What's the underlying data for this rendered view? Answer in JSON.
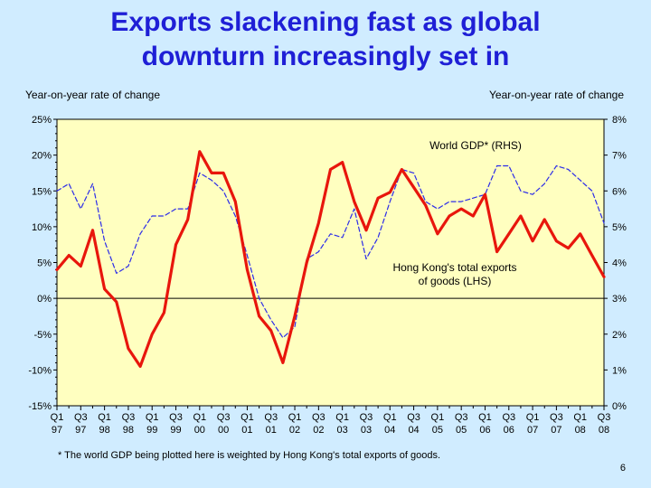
{
  "title_line1": "Exports slackening fast as global",
  "title_line2": "downturn increasingly set in",
  "footnote": "*  The world GDP being plotted here is weighted by Hong Kong's total exports of goods.",
  "page_number": "6",
  "chart_data": {
    "type": "line",
    "y_left_label": "Year-on-year rate of change",
    "y_right_label": "Year-on-year rate of change",
    "ylim_left": [
      -15,
      25
    ],
    "ylim_right": [
      0,
      8
    ],
    "y_left_ticks": [
      "25%",
      "20%",
      "15%",
      "10%",
      "5%",
      "0%",
      "-5%",
      "-10%",
      "-15%"
    ],
    "y_right_ticks": [
      "8%",
      "7%",
      "6%",
      "5%",
      "4%",
      "3%",
      "2%",
      "1%",
      "0%"
    ],
    "x_ticks": [
      {
        "q": "Q1",
        "y": "97"
      },
      {
        "q": "Q3",
        "y": "97"
      },
      {
        "q": "Q1",
        "y": "98"
      },
      {
        "q": "Q3",
        "y": "98"
      },
      {
        "q": "Q1",
        "y": "99"
      },
      {
        "q": "Q3",
        "y": "99"
      },
      {
        "q": "Q1",
        "y": "00"
      },
      {
        "q": "Q3",
        "y": "00"
      },
      {
        "q": "Q1",
        "y": "01"
      },
      {
        "q": "Q3",
        "y": "01"
      },
      {
        "q": "Q1",
        "y": "02"
      },
      {
        "q": "Q3",
        "y": "02"
      },
      {
        "q": "Q1",
        "y": "03"
      },
      {
        "q": "Q3",
        "y": "03"
      },
      {
        "q": "Q1",
        "y": "04"
      },
      {
        "q": "Q3",
        "y": "04"
      },
      {
        "q": "Q1",
        "y": "05"
      },
      {
        "q": "Q3",
        "y": "05"
      },
      {
        "q": "Q1",
        "y": "06"
      },
      {
        "q": "Q3",
        "y": "06"
      },
      {
        "q": "Q1",
        "y": "07"
      },
      {
        "q": "Q3",
        "y": "07"
      },
      {
        "q": "Q1",
        "y": "08"
      },
      {
        "q": "Q3",
        "y": "08"
      }
    ],
    "x": [
      "Q1 97",
      "Q2 97",
      "Q3 97",
      "Q4 97",
      "Q1 98",
      "Q2 98",
      "Q3 98",
      "Q4 98",
      "Q1 99",
      "Q2 99",
      "Q3 99",
      "Q4 99",
      "Q1 00",
      "Q2 00",
      "Q3 00",
      "Q4 00",
      "Q1 01",
      "Q2 01",
      "Q3 01",
      "Q4 01",
      "Q1 02",
      "Q2 02",
      "Q3 02",
      "Q4 02",
      "Q1 03",
      "Q2 03",
      "Q3 03",
      "Q4 03",
      "Q1 04",
      "Q2 04",
      "Q3 04",
      "Q4 04",
      "Q1 05",
      "Q2 05",
      "Q3 05",
      "Q4 05",
      "Q1 06",
      "Q2 06",
      "Q3 06",
      "Q4 06",
      "Q1 07",
      "Q2 07",
      "Q3 07",
      "Q4 07",
      "Q1 08",
      "Q2 08",
      "Q3 08"
    ],
    "series": [
      {
        "name": "Hong Kong's total exports of goods (LHS)",
        "label_lines": [
          "Hong Kong's total exports",
          "of goods (LHS)"
        ],
        "axis": "left",
        "color": "#e8160c",
        "style": "solid",
        "values": [
          4,
          6,
          4.5,
          9.5,
          1.3,
          -0.5,
          -7,
          -9.5,
          -5,
          -2,
          7.5,
          11,
          20.5,
          17.5,
          17.5,
          13.5,
          4,
          -2.5,
          -4.5,
          -9,
          -2.5,
          5,
          10.5,
          18,
          19,
          13.5,
          9.5,
          14,
          14.8,
          18,
          15.5,
          13,
          9,
          11.5,
          12.5,
          11.5,
          14.5,
          6.5,
          9,
          11.5,
          8,
          11,
          8,
          7,
          9,
          6,
          3
        ]
      },
      {
        "name": "World GDP* (RHS)",
        "label_lines": [
          "World GDP* (RHS)"
        ],
        "axis": "right",
        "color": "#2c2ce8",
        "style": "dashed",
        "values": [
          6,
          6.2,
          5.5,
          6.2,
          4.6,
          3.7,
          3.9,
          4.8,
          5.3,
          5.3,
          5.5,
          5.5,
          6.5,
          6.3,
          6.0,
          5.3,
          4.2,
          3.0,
          2.4,
          1.9,
          2.2,
          4.1,
          4.3,
          4.8,
          4.7,
          5.5,
          4.1,
          4.7,
          5.7,
          6.6,
          6.5,
          5.7,
          5.5,
          5.7,
          5.7,
          5.8,
          5.9,
          6.7,
          6.7,
          6.0,
          5.9,
          6.2,
          6.7,
          6.6,
          6.3,
          6.0,
          5.1
        ]
      }
    ],
    "zero_line": true,
    "grid": false,
    "legend": "inline labels"
  }
}
